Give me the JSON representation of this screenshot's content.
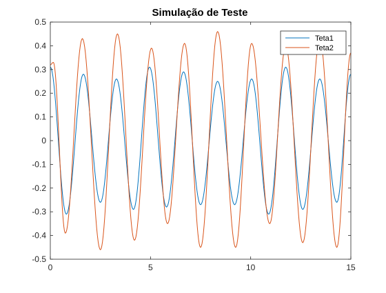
{
  "chart_data": {
    "type": "line",
    "title": "Simulação de Teste",
    "xlabel": "",
    "ylabel": "",
    "xlim": [
      0,
      15
    ],
    "ylim": [
      -0.5,
      0.5
    ],
    "x_ticks": [
      "0",
      "5",
      "10",
      "15"
    ],
    "y_ticks": [
      "0.5",
      "0.4",
      "0.3",
      "0.2",
      "0.1",
      "0",
      "-0.1",
      "-0.2",
      "-0.3",
      "-0.4",
      "-0.5"
    ],
    "grid": false,
    "legend_position": "top-right",
    "series": [
      {
        "name": "Teta1",
        "color": "#0072BD",
        "x": [
          0,
          0.8,
          1.65,
          2.5,
          3.3,
          4.15,
          4.95,
          5.8,
          6.65,
          7.5,
          8.35,
          9.2,
          10.05,
          10.9,
          11.75,
          12.6,
          13.45,
          14.3,
          15
        ],
        "values": [
          0.31,
          -0.31,
          0.28,
          -0.26,
          0.26,
          -0.29,
          0.31,
          -0.28,
          0.29,
          -0.27,
          0.25,
          -0.27,
          0.26,
          -0.31,
          0.31,
          -0.29,
          0.26,
          -0.26,
          0.28
        ]
      },
      {
        "name": "Teta2",
        "color": "#D95319",
        "x": [
          0,
          0.15,
          0.75,
          1.6,
          2.5,
          3.35,
          4.2,
          5.05,
          5.85,
          6.7,
          7.5,
          8.35,
          9.25,
          10.05,
          10.95,
          11.75,
          12.6,
          13.45,
          14.3,
          15
        ],
        "values": [
          0.32,
          0.33,
          -0.39,
          0.43,
          -0.46,
          0.45,
          -0.42,
          0.39,
          -0.35,
          0.41,
          -0.45,
          0.46,
          -0.45,
          0.41,
          -0.35,
          0.4,
          -0.43,
          0.43,
          -0.45,
          0.37
        ]
      }
    ]
  }
}
